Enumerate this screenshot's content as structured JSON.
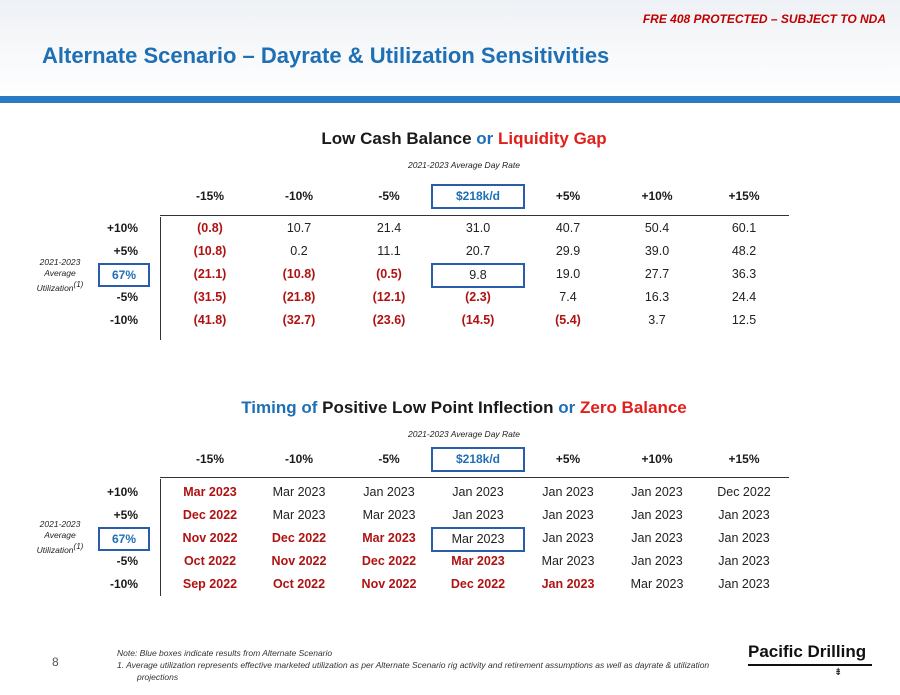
{
  "header": {
    "confidential": "FRE 408 PROTECTED – SUBJECT TO NDA",
    "title": "Alternate Scenario – Dayrate & Utilization Sensitivities"
  },
  "table1": {
    "title_a": "Low Cash Balance ",
    "title_b": "or",
    "title_c": " Liquidity Gap",
    "subhead": "2021-2023 Average Day Rate",
    "side_label": "2021-2023 Average Utilization",
    "side_sup": "(1)",
    "columns": [
      "-15%",
      "-10%",
      "-5%",
      "$218k/d",
      "+5%",
      "+10%",
      "+15%"
    ],
    "rows": [
      {
        "label": "+10%",
        "cells": [
          "(0.8)",
          "10.7",
          "21.4",
          "31.0",
          "40.7",
          "50.4",
          "60.1"
        ]
      },
      {
        "label": "+5%",
        "cells": [
          "(10.8)",
          "0.2",
          "11.1",
          "20.7",
          "29.9",
          "39.0",
          "48.2"
        ]
      },
      {
        "label": "67%",
        "cells": [
          "(21.1)",
          "(10.8)",
          "(0.5)",
          "9.8",
          "19.0",
          "27.7",
          "36.3"
        ]
      },
      {
        "label": "-5%",
        "cells": [
          "(31.5)",
          "(21.8)",
          "(12.1)",
          "(2.3)",
          "7.4",
          "16.3",
          "24.4"
        ]
      },
      {
        "label": "-10%",
        "cells": [
          "(41.8)",
          "(32.7)",
          "(23.6)",
          "(14.5)",
          "(5.4)",
          "3.7",
          "12.5"
        ]
      }
    ]
  },
  "table2": {
    "title_a": "Timing of",
    "title_b": " Positive Low Point Inflection ",
    "title_c": "or",
    "title_d": " Zero Balance",
    "subhead": "2021-2023 Average Day Rate",
    "side_label": "2021-2023 Average Utilization",
    "side_sup": "(1)",
    "columns": [
      "-15%",
      "-10%",
      "-5%",
      "$218k/d",
      "+5%",
      "+10%",
      "+15%"
    ],
    "rows": [
      {
        "label": "+10%",
        "cells": [
          "Mar 2023",
          "Mar 2023",
          "Jan 2023",
          "Jan 2023",
          "Jan 2023",
          "Jan 2023",
          "Dec 2022"
        ]
      },
      {
        "label": "+5%",
        "cells": [
          "Dec 2022",
          "Mar 2023",
          "Mar 2023",
          "Jan 2023",
          "Jan 2023",
          "Jan 2023",
          "Jan 2023"
        ]
      },
      {
        "label": "67%",
        "cells": [
          "Nov 2022",
          "Dec 2022",
          "Mar 2023",
          "Mar 2023",
          "Jan 2023",
          "Jan 2023",
          "Jan 2023"
        ]
      },
      {
        "label": "-5%",
        "cells": [
          "Oct 2022",
          "Nov 2022",
          "Dec 2022",
          "Mar 2023",
          "Mar 2023",
          "Jan 2023",
          "Jan 2023"
        ]
      },
      {
        "label": "-10%",
        "cells": [
          "Sep 2022",
          "Oct 2022",
          "Nov 2022",
          "Dec 2022",
          "Jan 2023",
          "Mar 2023",
          "Jan 2023"
        ]
      }
    ],
    "red_flags": [
      [
        true,
        false,
        false,
        false,
        false,
        false,
        false
      ],
      [
        true,
        false,
        false,
        false,
        false,
        false,
        false
      ],
      [
        true,
        true,
        true,
        false,
        false,
        false,
        false
      ],
      [
        true,
        true,
        true,
        true,
        false,
        false,
        false
      ],
      [
        true,
        true,
        true,
        true,
        true,
        false,
        false
      ]
    ]
  },
  "footer": {
    "page_number": "8",
    "note": "Note: Blue boxes indicate results from Alternate Scenario",
    "footnote": "1.    Average utilization represents effective marketed utilization as per Alternate Scenario rig activity and retirement assumptions as well as dayrate & utilization projections",
    "logo": "Pacific Drilling",
    "logo_icon": "drill-bit-icon"
  },
  "colors": {
    "accent_blue": "#1f6fb5",
    "accent_red": "#e0201b",
    "neg_red": "#b01212",
    "box_blue": "#2a5caa"
  }
}
